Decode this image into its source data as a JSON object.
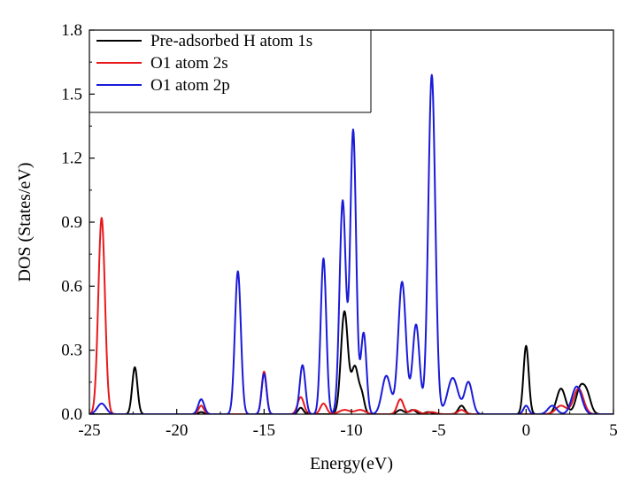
{
  "chart_data": {
    "type": "line",
    "xlabel": "Energy(eV)",
    "ylabel": "DOS (States/eV)",
    "xlim": [
      -25,
      5
    ],
    "ylim": [
      0,
      1.8
    ],
    "x_ticks": [
      "-25",
      "-20",
      "-15",
      "-10",
      "-5",
      "0",
      "5"
    ],
    "y_ticks": [
      "0.0",
      "0.3",
      "0.6",
      "0.9",
      "1.2",
      "1.5",
      "1.8"
    ],
    "legend_placement": "top-left",
    "grid": false,
    "series": [
      {
        "name": "Pre-adsorbed H atom 1s",
        "color": "#000000",
        "peaks": [
          [
            -22.4,
            0.22,
            0.15
          ],
          [
            -18.6,
            0.01,
            0.15
          ],
          [
            -12.9,
            0.03,
            0.15
          ],
          [
            -10.4,
            0.48,
            0.2
          ],
          [
            -9.8,
            0.22,
            0.2
          ],
          [
            -9.4,
            0.08,
            0.15
          ],
          [
            -7.2,
            0.02,
            0.2
          ],
          [
            -6.5,
            0.02,
            0.2
          ],
          [
            -5.6,
            0.01,
            0.2
          ],
          [
            -3.7,
            0.04,
            0.18
          ],
          [
            0.0,
            0.32,
            0.15
          ],
          [
            2.0,
            0.12,
            0.25
          ],
          [
            3.1,
            0.12,
            0.25
          ],
          [
            3.5,
            0.08,
            0.22
          ]
        ]
      },
      {
        "name": "O1 atom 2s",
        "color": "#e8191c",
        "peaks": [
          [
            -24.3,
            0.92,
            0.19
          ],
          [
            -18.6,
            0.04,
            0.15
          ],
          [
            -15.0,
            0.2,
            0.14
          ],
          [
            -12.9,
            0.08,
            0.18
          ],
          [
            -11.6,
            0.05,
            0.18
          ],
          [
            -10.4,
            0.02,
            0.3
          ],
          [
            -9.5,
            0.02,
            0.3
          ],
          [
            -7.2,
            0.07,
            0.18
          ],
          [
            -6.4,
            0.02,
            0.25
          ],
          [
            -5.4,
            0.01,
            0.25
          ],
          [
            -3.7,
            0.02,
            0.2
          ],
          [
            2.0,
            0.04,
            0.3
          ],
          [
            3.0,
            0.12,
            0.28
          ]
        ]
      },
      {
        "name": "O1 atom 2p",
        "color": "#1a1ad9",
        "peaks": [
          [
            -24.3,
            0.05,
            0.25
          ],
          [
            -18.6,
            0.07,
            0.17
          ],
          [
            -16.5,
            0.67,
            0.17
          ],
          [
            -15.0,
            0.19,
            0.14
          ],
          [
            -12.8,
            0.23,
            0.16
          ],
          [
            -11.6,
            0.73,
            0.16
          ],
          [
            -10.5,
            1.0,
            0.18
          ],
          [
            -9.9,
            1.33,
            0.17
          ],
          [
            -9.3,
            0.38,
            0.16
          ],
          [
            -8.0,
            0.18,
            0.25
          ],
          [
            -7.1,
            0.62,
            0.22
          ],
          [
            -6.3,
            0.42,
            0.2
          ],
          [
            -5.4,
            1.59,
            0.2
          ],
          [
            -4.2,
            0.17,
            0.3
          ],
          [
            -3.3,
            0.15,
            0.22
          ],
          [
            0.0,
            0.04,
            0.15
          ],
          [
            1.5,
            0.04,
            0.25
          ],
          [
            2.9,
            0.13,
            0.28
          ]
        ]
      }
    ]
  }
}
